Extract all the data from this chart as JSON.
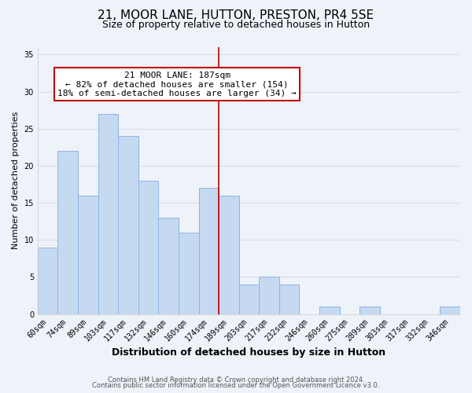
{
  "title": "21, MOOR LANE, HUTTON, PRESTON, PR4 5SE",
  "subtitle": "Size of property relative to detached houses in Hutton",
  "xlabel": "Distribution of detached houses by size in Hutton",
  "ylabel": "Number of detached properties",
  "bar_labels": [
    "60sqm",
    "74sqm",
    "89sqm",
    "103sqm",
    "117sqm",
    "132sqm",
    "146sqm",
    "160sqm",
    "174sqm",
    "189sqm",
    "203sqm",
    "217sqm",
    "232sqm",
    "246sqm",
    "260sqm",
    "275sqm",
    "289sqm",
    "303sqm",
    "317sqm",
    "332sqm",
    "346sqm"
  ],
  "bar_values": [
    9,
    22,
    16,
    27,
    24,
    18,
    13,
    11,
    17,
    16,
    4,
    5,
    4,
    0,
    1,
    0,
    1,
    0,
    0,
    0,
    1
  ],
  "bar_color": "#c5d9f1",
  "bar_edge_color": "#8db4e2",
  "property_line_index": 9,
  "annotation_title": "21 MOOR LANE: 187sqm",
  "annotation_line1": "← 82% of detached houses are smaller (154)",
  "annotation_line2": "18% of semi-detached houses are larger (34) →",
  "annotation_box_edge": "#c00000",
  "annotation_line_color": "#c00000",
  "ylim": [
    0,
    36
  ],
  "yticks": [
    0,
    5,
    10,
    15,
    20,
    25,
    30,
    35
  ],
  "footer1": "Contains HM Land Registry data © Crown copyright and database right 2024.",
  "footer2": "Contains public sector information licensed under the Open Government Licence v3.0.",
  "bg_color": "#eef2f9",
  "grid_color": "#d8dee9",
  "title_fontsize": 11,
  "subtitle_fontsize": 9,
  "xlabel_fontsize": 9,
  "ylabel_fontsize": 8,
  "tick_fontsize": 7,
  "annotation_fontsize": 8,
  "footer_fontsize": 6
}
